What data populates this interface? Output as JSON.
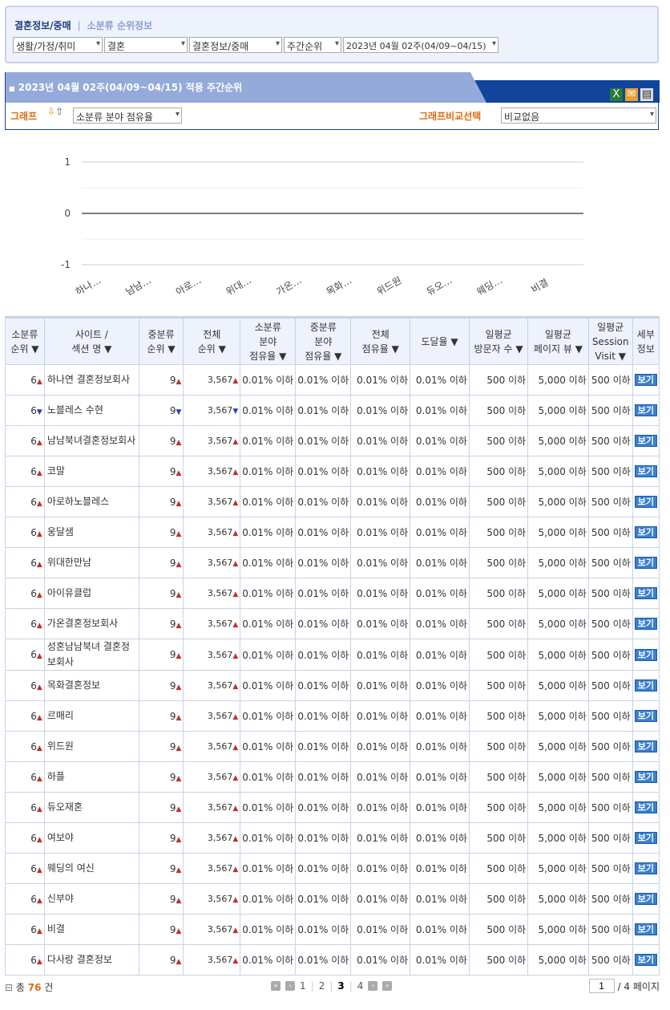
{
  "breadcrumb": {
    "main": "결혼정보/중매",
    "separator": "|",
    "sub": "소분류 순위정보"
  },
  "filters": [
    "생활/가정/취미",
    "결혼",
    "결혼정보/중매",
    "주간순위",
    "2023년 04월 02주(04/09~04/15)"
  ],
  "panel": {
    "title": "2023년 04월 02주(04/09~04/15) 적용 주간순위",
    "graph_label": "그래프",
    "graph_select": "소분류 분야 점유율",
    "compare_label": "그래프비교선택",
    "compare_select": "비교없음",
    "icons": [
      "excel-icon",
      "mail-icon",
      "print-icon"
    ]
  },
  "chart_data": {
    "type": "line",
    "categories": [
      "하나…",
      "남남…",
      "아로…",
      "위대…",
      "가온…",
      "목화…",
      "위드원",
      "듀오…",
      "웨딩…",
      "비결"
    ],
    "series": [],
    "ylim": [
      -1,
      1
    ],
    "yticks": [
      "1",
      "0",
      "-1"
    ],
    "grid": true
  },
  "table": {
    "headers": [
      "소분류\n순위 ▼",
      "사이트 /\n섹션 명 ▼",
      "중분류\n순위 ▼",
      "전체\n순위 ▼",
      "소분류\n분야\n점유율 ▼",
      "중분류\n분야\n점유율 ▼",
      "전체\n점유율 ▼",
      "도달율 ▼",
      "일평균\n방문자 수 ▼",
      "일평균\n페이지 뷰 ▼",
      "일평균\nSession\nVisit ▼",
      "세부\n정보"
    ],
    "rows": [
      {
        "rank": "6",
        "name": "하나연 결혼정보회사",
        "trend": "up"
      },
      {
        "rank": "6",
        "name": "노블레스 수현",
        "trend": "down"
      },
      {
        "rank": "6",
        "name": "남남북녀결혼정보회사",
        "trend": "up"
      },
      {
        "rank": "6",
        "name": "코말",
        "trend": "up"
      },
      {
        "rank": "6",
        "name": "아로하노블레스",
        "trend": "up"
      },
      {
        "rank": "6",
        "name": "웅달샘",
        "trend": "up"
      },
      {
        "rank": "6",
        "name": "위대한만남",
        "trend": "up"
      },
      {
        "rank": "6",
        "name": "아이유클럽",
        "trend": "up"
      },
      {
        "rank": "6",
        "name": "가온결혼정보회사",
        "trend": "up"
      },
      {
        "rank": "6",
        "name": "성혼남남북녀 결혼정보회사",
        "trend": "up"
      },
      {
        "rank": "6",
        "name": "목화결혼정보",
        "trend": "up"
      },
      {
        "rank": "6",
        "name": "르매리",
        "trend": "up"
      },
      {
        "rank": "6",
        "name": "위드원",
        "trend": "up"
      },
      {
        "rank": "6",
        "name": "하플",
        "trend": "up"
      },
      {
        "rank": "6",
        "name": "듀오재혼",
        "trend": "up"
      },
      {
        "rank": "6",
        "name": "여보야",
        "trend": "up"
      },
      {
        "rank": "6",
        "name": "웨딩의 여신",
        "trend": "up"
      },
      {
        "rank": "6",
        "name": "신부야",
        "trend": "up"
      },
      {
        "rank": "6",
        "name": "비결",
        "trend": "up"
      },
      {
        "rank": "6",
        "name": "다사랑 결혼정보",
        "trend": "up"
      }
    ],
    "common": {
      "mid_rank": "9",
      "total_rank": "3,567",
      "share_small": "0.01% 이하",
      "share_mid": "0.01% 이하",
      "share_total": "0.01% 이하",
      "reach": "0.01% 이하",
      "visitors": "500 이하",
      "pageviews": "5,000 이하",
      "sessions": "500 이하",
      "detail": "보기"
    }
  },
  "footer": {
    "total_prefix": "총",
    "total": "76",
    "total_suffix": "건",
    "pages": [
      "1",
      "2",
      "3",
      "4"
    ],
    "current_page": "3",
    "page_input": "1",
    "page_total": "/ 4 페이지"
  }
}
